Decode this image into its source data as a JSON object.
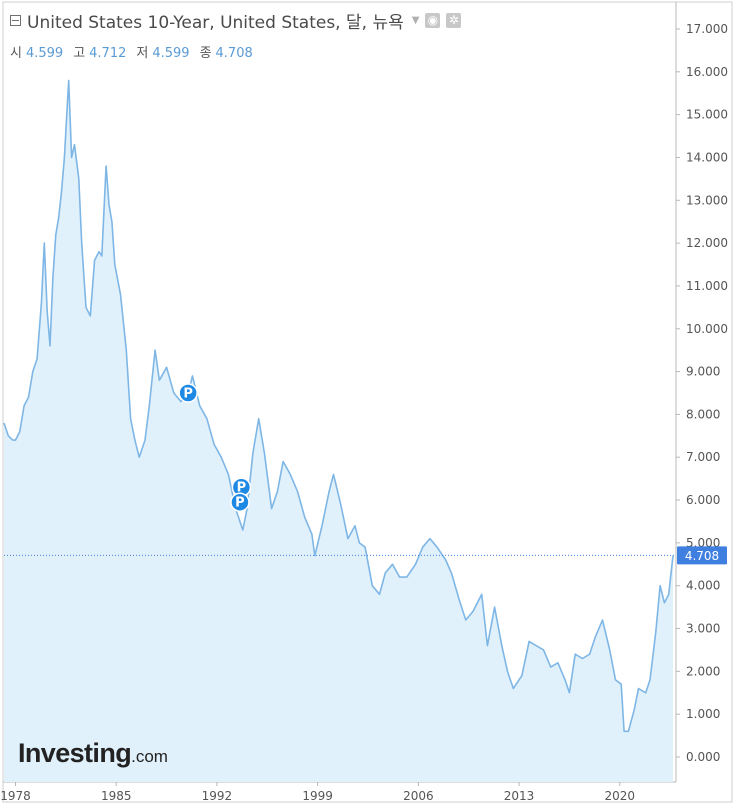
{
  "header": {
    "title": "United States 10-Year, United States, 달, 뉴욕",
    "ohlc": [
      {
        "label": "시",
        "value": "4.599"
      },
      {
        "label": "고",
        "value": "4.712"
      },
      {
        "label": "저",
        "value": "4.599"
      },
      {
        "label": "종",
        "value": "4.708"
      }
    ]
  },
  "logo": {
    "brand": "Investing",
    "suffix": ".com"
  },
  "colors": {
    "line": "#7eb6e6",
    "fill": "#e1f1fb",
    "badge": "#1e88e5",
    "last": "#3f7fe0"
  },
  "chart_data": {
    "type": "area",
    "title": "United States 10-Year, United States, 달, 뉴욕",
    "xlabel": "",
    "ylabel": "",
    "xlim": [
      1977.2,
      2023.7
    ],
    "ylim": [
      0,
      17
    ],
    "grid": false,
    "x_ticks": [
      "1978",
      "1985",
      "1992",
      "1999",
      "2006",
      "2013",
      "2020"
    ],
    "x_tick_values": [
      1978,
      1985,
      1992,
      1999,
      2006,
      2013,
      2020
    ],
    "y_ticks": [
      "0.000",
      "1.000",
      "2.000",
      "3.000",
      "4.000",
      "5.000",
      "6.000",
      "7.000",
      "8.000",
      "9.000",
      "10.000",
      "11.000",
      "12.000",
      "13.000",
      "14.000",
      "15.000",
      "16.000",
      "17.000"
    ],
    "y_tick_values": [
      0,
      1,
      2,
      3,
      4,
      5,
      6,
      7,
      8,
      9,
      10,
      11,
      12,
      13,
      14,
      15,
      16,
      17
    ],
    "last_value": 4.708,
    "last_label": "4.708",
    "series": [
      {
        "x": [
          1977.2,
          1977.5,
          1977.8,
          1978.0,
          1978.3,
          1978.6,
          1978.9,
          1979.2,
          1979.5,
          1979.8,
          1980.0,
          1980.2,
          1980.4,
          1980.6,
          1980.8,
          1981.0,
          1981.2,
          1981.4,
          1981.7,
          1981.9,
          1982.1,
          1982.4,
          1982.6,
          1982.9,
          1983.2,
          1983.5,
          1983.8,
          1984.0,
          1984.3,
          1984.5,
          1984.7,
          1984.9,
          1985.3,
          1985.7,
          1986.0,
          1986.3,
          1986.6,
          1987.0,
          1987.3,
          1987.7,
          1988.0,
          1988.5,
          1989.0,
          1989.5,
          1990.0,
          1990.3,
          1990.8,
          1991.3,
          1991.8,
          1992.3,
          1992.8,
          1993.3,
          1993.8,
          1994.1,
          1994.5,
          1994.9,
          1995.3,
          1995.8,
          1996.2,
          1996.6,
          1997.1,
          1997.6,
          1998.1,
          1998.6,
          1998.8,
          1999.3,
          1999.8,
          2000.1,
          2000.6,
          2001.1,
          2001.6,
          2001.9,
          2002.3,
          2002.8,
          2003.3,
          2003.7,
          2004.2,
          2004.7,
          2005.2,
          2005.8,
          2006.3,
          2006.8,
          2007.3,
          2007.9,
          2008.3,
          2008.9,
          2009.3,
          2009.8,
          2010.4,
          2010.8,
          2011.3,
          2011.8,
          2012.2,
          2012.6,
          2013.2,
          2013.7,
          2014.2,
          2014.7,
          2015.2,
          2015.7,
          2016.2,
          2016.5,
          2016.9,
          2017.4,
          2017.9,
          2018.3,
          2018.8,
          2019.3,
          2019.7,
          2020.1,
          2020.3,
          2020.6,
          2021.0,
          2021.3,
          2021.8,
          2022.1,
          2022.5,
          2022.8,
          2023.1,
          2023.4,
          2023.7
        ],
        "values": [
          7.8,
          7.5,
          7.4,
          7.4,
          7.6,
          8.2,
          8.4,
          9.0,
          9.3,
          10.6,
          12.0,
          10.4,
          9.6,
          11.2,
          12.2,
          12.6,
          13.2,
          14.0,
          15.8,
          14.0,
          14.3,
          13.5,
          12.0,
          10.5,
          10.3,
          11.6,
          11.8,
          11.7,
          13.8,
          12.9,
          12.5,
          11.5,
          10.8,
          9.5,
          7.9,
          7.4,
          7.0,
          7.4,
          8.2,
          9.5,
          8.8,
          9.1,
          8.5,
          8.3,
          8.5,
          8.9,
          8.2,
          7.9,
          7.3,
          7.0,
          6.6,
          5.8,
          5.3,
          5.8,
          7.1,
          7.9,
          7.1,
          5.8,
          6.2,
          6.9,
          6.6,
          6.2,
          5.6,
          5.2,
          4.7,
          5.4,
          6.2,
          6.6,
          5.9,
          5.1,
          5.4,
          5.0,
          4.9,
          4.0,
          3.8,
          4.3,
          4.5,
          4.2,
          4.2,
          4.5,
          4.9,
          5.1,
          4.9,
          4.6,
          4.3,
          3.6,
          3.2,
          3.4,
          3.8,
          2.6,
          3.5,
          2.6,
          2.0,
          1.6,
          1.9,
          2.7,
          2.6,
          2.5,
          2.1,
          2.2,
          1.8,
          1.5,
          2.4,
          2.3,
          2.4,
          2.8,
          3.2,
          2.5,
          1.8,
          1.7,
          0.6,
          0.6,
          1.1,
          1.6,
          1.5,
          1.8,
          2.9,
          4.0,
          3.6,
          3.8,
          4.7
        ]
      }
    ]
  }
}
